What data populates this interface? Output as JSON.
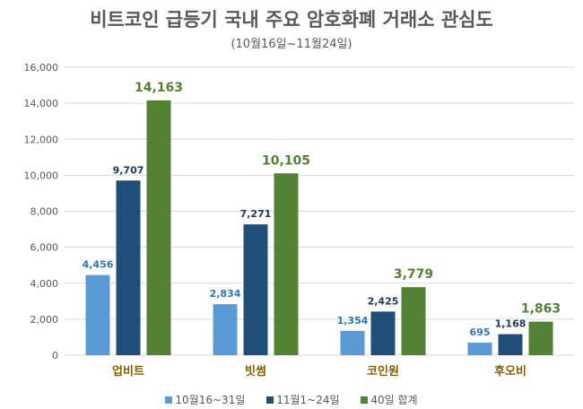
{
  "chart_data": {
    "type": "bar",
    "title": "비트코인 급등기 국내 주요 암호화폐 거래소 관심도",
    "subtitle": "(10월16일~11월24일)",
    "categories": [
      "업비트",
      "빗썸",
      "코인원",
      "후오비"
    ],
    "series": [
      {
        "name": "10월16~31일",
        "color": "#5B9BD5",
        "label_color": "#2E75B6",
        "values": [
          4456,
          2834,
          1354,
          695
        ]
      },
      {
        "name": "11월1~24일",
        "color": "#1F4E79",
        "label_color": "#1F3864",
        "values": [
          9707,
          7271,
          2425,
          1168
        ]
      },
      {
        "name": "40일 합계",
        "color": "#548235",
        "label_color": "#548235",
        "values": [
          14163,
          10105,
          3779,
          1863
        ]
      }
    ],
    "xlabel": "",
    "ylabel": "",
    "ylim": [
      0,
      16000
    ],
    "yticks": [
      0,
      2000,
      4000,
      6000,
      8000,
      10000,
      12000,
      14000,
      16000
    ],
    "ytick_labels": [
      "0",
      "2,000",
      "4,000",
      "6,000",
      "8,000",
      "10,000",
      "12,000",
      "14,000",
      "16,000"
    ],
    "grid": true,
    "legend_position": "bottom",
    "category_label_color": "#7F6000"
  }
}
